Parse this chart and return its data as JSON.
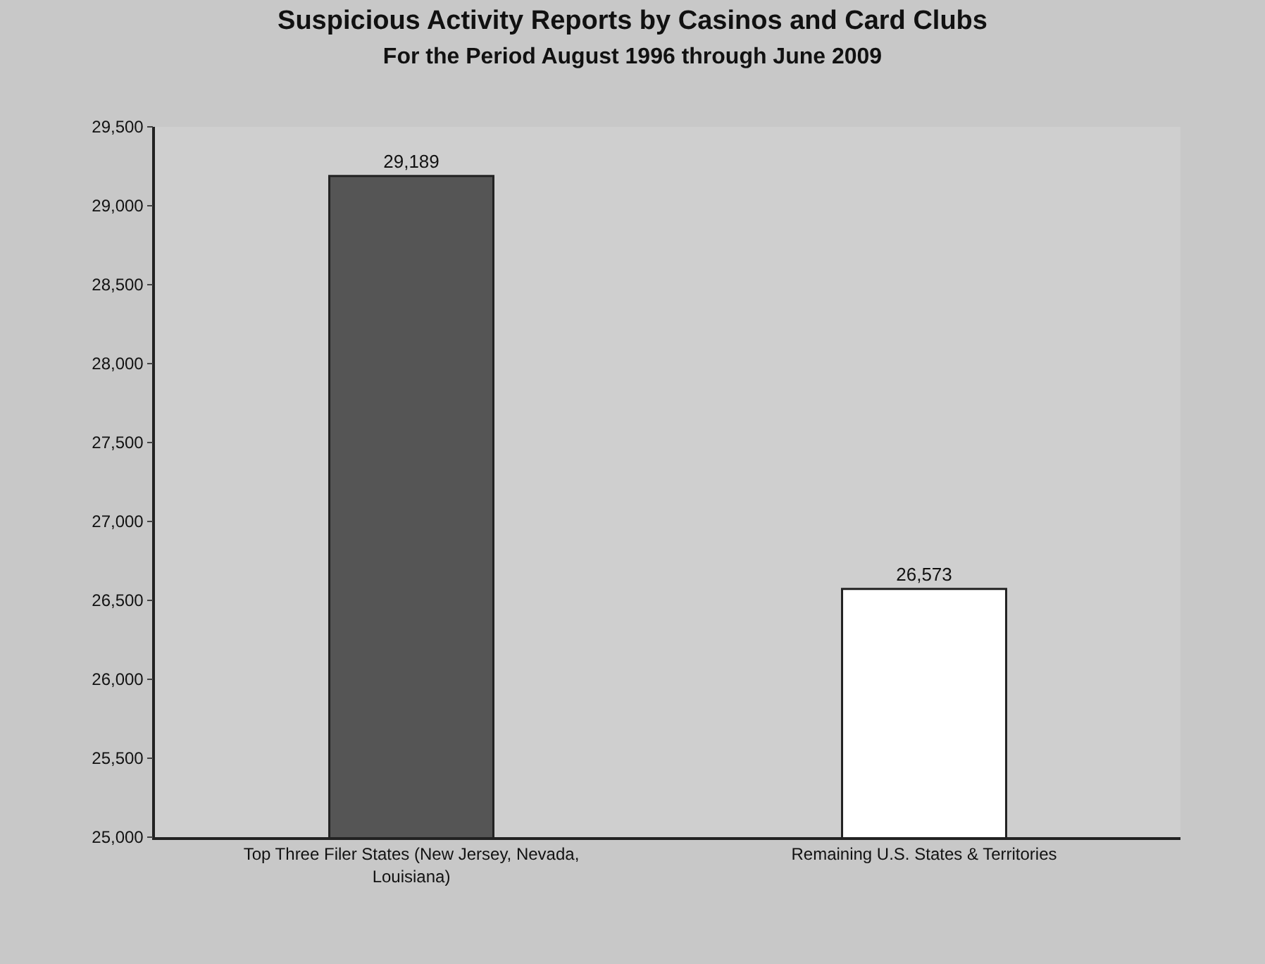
{
  "chart_data": {
    "type": "bar",
    "title": "Suspicious Activity Reports by Casinos and Card Clubs",
    "subtitle": "For the Period August 1996 through June 2009",
    "categories": [
      "Top Three Filer States (New Jersey, Nevada,\nLouisiana)",
      "Remaining U.S. States & Territories"
    ],
    "values": [
      29189,
      26573
    ],
    "colors": [
      "#555555",
      "#ffffff"
    ],
    "ylim": [
      25000,
      29500
    ],
    "yticks": [
      {
        "value": 25000,
        "label": "25,000"
      },
      {
        "value": 25500,
        "label": "25,500"
      },
      {
        "value": 26000,
        "label": "26,000"
      },
      {
        "value": 26500,
        "label": "26,500"
      },
      {
        "value": 27000,
        "label": "27,000"
      },
      {
        "value": 27500,
        "label": "27,500"
      },
      {
        "value": 28000,
        "label": "28,000"
      },
      {
        "value": 28500,
        "label": "28,500"
      },
      {
        "value": 29000,
        "label": "29,000"
      },
      {
        "value": 29500,
        "label": "29,500"
      }
    ],
    "value_labels": [
      "29,189",
      "26,573"
    ],
    "grid": false,
    "legend": false
  }
}
